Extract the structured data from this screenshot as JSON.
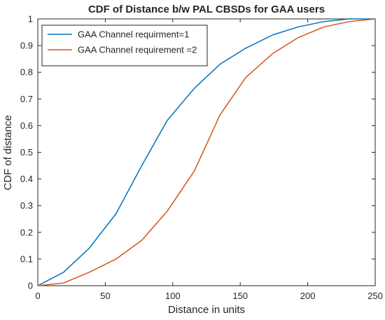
{
  "chart_data": {
    "type": "line",
    "title": "CDF of Distance b/w PAL CBSDs for GAA users",
    "xlabel": "Distance in units",
    "ylabel": "CDF of distance",
    "xlim": [
      0,
      250
    ],
    "ylim": [
      0,
      1
    ],
    "xticks": [
      0,
      50,
      100,
      150,
      200,
      250
    ],
    "yticks": [
      0,
      0.1,
      0.2,
      0.3,
      0.4,
      0.5,
      0.6,
      0.7,
      0.8,
      0.9,
      1
    ],
    "grid": false,
    "legend_position": "top-left",
    "series": [
      {
        "name": "GAA Channel requirment=1",
        "color": "#0072BD",
        "x": [
          0,
          19,
          38,
          58,
          77,
          96,
          116,
          135,
          154,
          174,
          193,
          212,
          231,
          250
        ],
        "y": [
          0,
          0.05,
          0.14,
          0.27,
          0.45,
          0.62,
          0.74,
          0.83,
          0.89,
          0.94,
          0.97,
          0.99,
          1.0,
          1.0
        ]
      },
      {
        "name": "GAA Channel requirement =2",
        "color": "#D95319",
        "x": [
          0,
          19,
          38,
          58,
          77,
          96,
          116,
          135,
          154,
          174,
          193,
          212,
          231,
          250
        ],
        "y": [
          0,
          0.01,
          0.05,
          0.1,
          0.17,
          0.28,
          0.43,
          0.64,
          0.78,
          0.87,
          0.93,
          0.97,
          0.99,
          1.0
        ]
      }
    ]
  }
}
